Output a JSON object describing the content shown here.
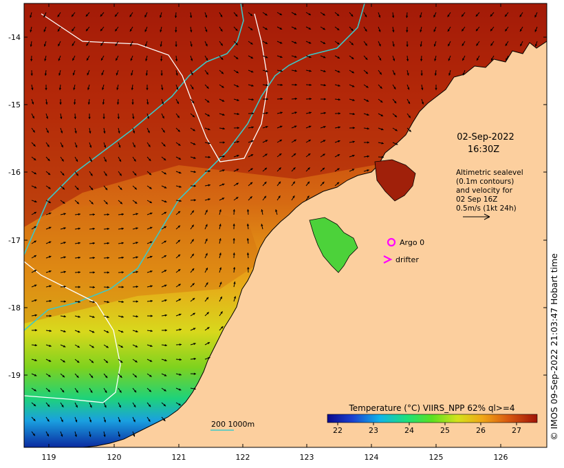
{
  "map": {
    "date_line1": "02-Sep-2022",
    "date_line2": "16:30Z",
    "altimetry_note": [
      "Altimetric sealevel",
      "(0.1m contours)",
      "and velocity for",
      "02 Sep 16Z",
      "0.5m/s (1kt 24h)"
    ],
    "legend_argo_label": "Argo 0",
    "legend_drifter_label": "drifter",
    "scale_bar_label": "200  1000m",
    "colorbar_title": "Temperature (°C) VIIRS_NPP 62% ql>=4",
    "colorbar_ticks": [
      "22",
      "23",
      "24",
      "25",
      "26",
      "27"
    ],
    "x_ticks": [
      "119",
      "120",
      "121",
      "122",
      "123",
      "124",
      "125",
      "126"
    ],
    "y_ticks": [
      "-14",
      "-15",
      "-16",
      "-17",
      "-18",
      "-19"
    ],
    "copyright": "© IMOS 09-Sep-2022 21:03:47 Hobart time",
    "colors": {
      "land": "#fccf9e",
      "contour": "#ffffff",
      "isobath": "#3cc8c8",
      "marker": "#ff00ff",
      "coast": "#000000"
    }
  }
}
